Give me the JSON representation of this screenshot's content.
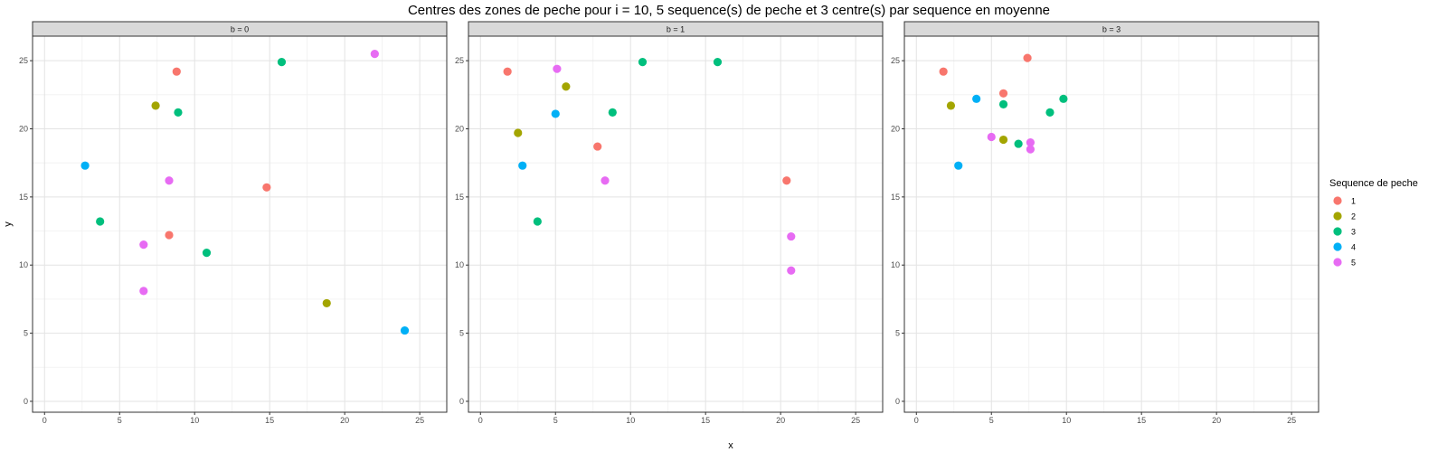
{
  "chart_data": {
    "type": "scatter",
    "title": "Centres des zones de peche pour i = 10, 5 sequence(s) de peche et 3 centre(s) par sequence en moyenne",
    "xlabel": "x",
    "ylabel": "y",
    "xlim": [
      -0.8,
      26.8
    ],
    "ylim": [
      -0.8,
      26.8
    ],
    "xticks": [
      0,
      5,
      10,
      15,
      20,
      25
    ],
    "yticks": [
      0,
      5,
      10,
      15,
      20,
      25
    ],
    "grid": true,
    "legend": {
      "title": "Sequence de peche",
      "placement": "right",
      "entries": [
        "1",
        "2",
        "3",
        "4",
        "5"
      ]
    },
    "colors": {
      "1": "#F8766D",
      "2": "#A3A500",
      "3": "#00BF7D",
      "4": "#00B0F6",
      "5": "#E76BF3"
    },
    "panels": [
      {
        "label": "b = 0",
        "points": [
          {
            "x": 8.8,
            "y": 24.2,
            "seq": "1"
          },
          {
            "x": 14.8,
            "y": 15.7,
            "seq": "1"
          },
          {
            "x": 8.3,
            "y": 12.2,
            "seq": "1"
          },
          {
            "x": 7.4,
            "y": 21.7,
            "seq": "2"
          },
          {
            "x": 18.8,
            "y": 7.2,
            "seq": "2"
          },
          {
            "x": 15.8,
            "y": 24.9,
            "seq": "3"
          },
          {
            "x": 8.9,
            "y": 21.2,
            "seq": "3"
          },
          {
            "x": 3.7,
            "y": 13.2,
            "seq": "3"
          },
          {
            "x": 10.8,
            "y": 10.9,
            "seq": "3"
          },
          {
            "x": 2.7,
            "y": 17.3,
            "seq": "4"
          },
          {
            "x": 24.0,
            "y": 5.2,
            "seq": "4"
          },
          {
            "x": 22.0,
            "y": 25.5,
            "seq": "5"
          },
          {
            "x": 8.3,
            "y": 16.2,
            "seq": "5"
          },
          {
            "x": 6.6,
            "y": 11.5,
            "seq": "5"
          },
          {
            "x": 6.6,
            "y": 8.1,
            "seq": "5"
          }
        ]
      },
      {
        "label": "b = 1",
        "points": [
          {
            "x": 1.8,
            "y": 24.2,
            "seq": "1"
          },
          {
            "x": 7.8,
            "y": 18.7,
            "seq": "1"
          },
          {
            "x": 20.4,
            "y": 16.2,
            "seq": "1"
          },
          {
            "x": 5.7,
            "y": 23.1,
            "seq": "2"
          },
          {
            "x": 2.5,
            "y": 19.7,
            "seq": "2"
          },
          {
            "x": 10.8,
            "y": 24.9,
            "seq": "3"
          },
          {
            "x": 15.8,
            "y": 24.9,
            "seq": "3"
          },
          {
            "x": 8.8,
            "y": 21.2,
            "seq": "3"
          },
          {
            "x": 3.8,
            "y": 13.2,
            "seq": "3"
          },
          {
            "x": 5.0,
            "y": 21.1,
            "seq": "4"
          },
          {
            "x": 2.8,
            "y": 17.3,
            "seq": "4"
          },
          {
            "x": 5.1,
            "y": 24.4,
            "seq": "5"
          },
          {
            "x": 8.3,
            "y": 16.2,
            "seq": "5"
          },
          {
            "x": 20.7,
            "y": 12.1,
            "seq": "5"
          },
          {
            "x": 20.7,
            "y": 9.6,
            "seq": "5"
          }
        ]
      },
      {
        "label": "b = 3",
        "points": [
          {
            "x": 1.8,
            "y": 24.2,
            "seq": "1"
          },
          {
            "x": 7.4,
            "y": 25.2,
            "seq": "1"
          },
          {
            "x": 5.8,
            "y": 22.6,
            "seq": "1"
          },
          {
            "x": 2.3,
            "y": 21.7,
            "seq": "2"
          },
          {
            "x": 5.8,
            "y": 19.2,
            "seq": "2"
          },
          {
            "x": 5.8,
            "y": 21.8,
            "seq": "3"
          },
          {
            "x": 9.8,
            "y": 22.2,
            "seq": "3"
          },
          {
            "x": 8.9,
            "y": 21.2,
            "seq": "3"
          },
          {
            "x": 6.8,
            "y": 18.9,
            "seq": "3"
          },
          {
            "x": 4.0,
            "y": 22.2,
            "seq": "4"
          },
          {
            "x": 2.8,
            "y": 17.3,
            "seq": "4"
          },
          {
            "x": 5.0,
            "y": 19.4,
            "seq": "5"
          },
          {
            "x": 7.6,
            "y": 19.0,
            "seq": "5"
          },
          {
            "x": 7.6,
            "y": 18.5,
            "seq": "5"
          }
        ]
      }
    ]
  }
}
